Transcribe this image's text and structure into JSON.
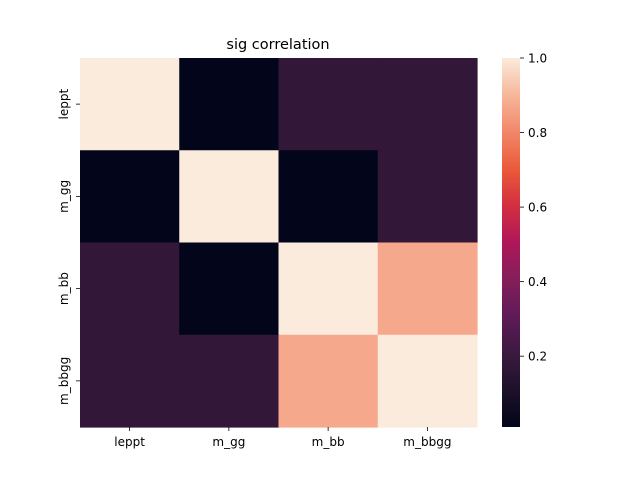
{
  "chart_data": {
    "type": "heatmap",
    "title": "sig correlation",
    "xlabel": "",
    "ylabel": "",
    "x_categories": [
      "leppt",
      "m_gg",
      "m_bb",
      "m_bbgg"
    ],
    "y_categories": [
      "leppt",
      "m_gg",
      "m_bb",
      "m_bbgg"
    ],
    "values": [
      [
        1.0,
        0.01,
        0.18,
        0.18
      ],
      [
        0.01,
        1.0,
        0.01,
        0.18
      ],
      [
        0.18,
        0.01,
        1.0,
        0.87
      ],
      [
        0.18,
        0.18,
        0.87,
        1.0
      ]
    ],
    "colorbar": {
      "vmin": 0.01,
      "vmax": 1.0,
      "ticks": [
        0.2,
        0.4,
        0.6,
        0.8,
        1.0
      ],
      "tick_labels": [
        "0.2",
        "0.4",
        "0.6",
        "0.8",
        "1.0"
      ],
      "colormap": "rocket"
    },
    "grid": false
  }
}
